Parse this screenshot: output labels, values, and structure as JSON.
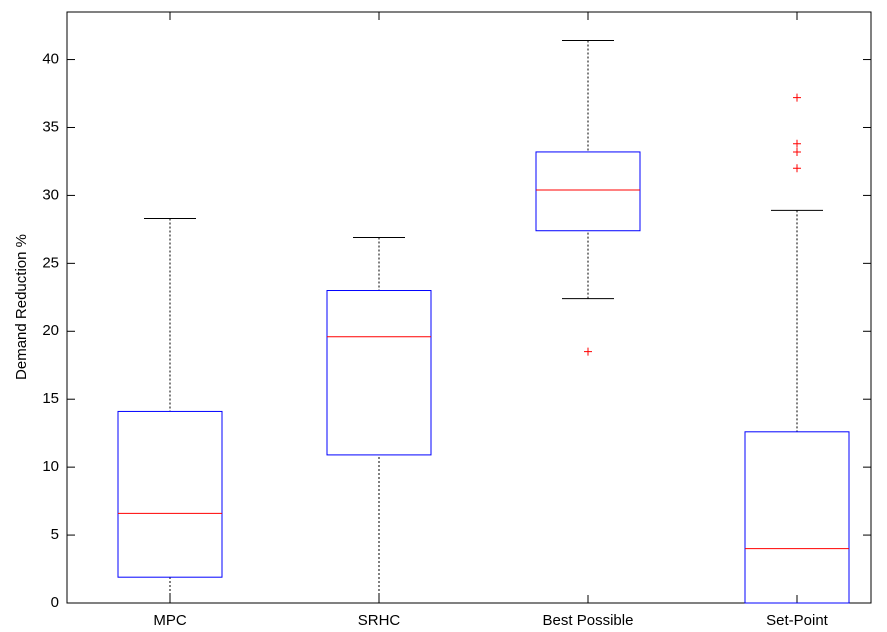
{
  "chart_data": {
    "type": "box",
    "y_label": "Demand Reduction %",
    "categories": [
      "MPC",
      "SRHC",
      "Best Possible",
      "Set-Point"
    ],
    "boxes": [
      {
        "min": 0,
        "q1": 1.9,
        "median": 6.6,
        "q3": 14.1,
        "max": 28.3,
        "outliers": []
      },
      {
        "min": 0,
        "q1": 10.9,
        "median": 19.6,
        "q3": 23.0,
        "max": 26.9,
        "outliers": []
      },
      {
        "min": 22.4,
        "q1": 27.4,
        "median": 30.4,
        "q3": 33.2,
        "max": 41.4,
        "outliers": [
          18.5
        ]
      },
      {
        "min": 0,
        "q1": 0,
        "median": 4.0,
        "q3": 12.6,
        "max": 28.9,
        "outliers": [
          37.2,
          33.8,
          33.2,
          32.0
        ]
      }
    ],
    "box_color": "#0000ff",
    "median_color": "#ff0000",
    "whisker_color": "#000000",
    "outlier_color": "#ff0000",
    "ylim": [
      0,
      43.5
    ],
    "yticks": [
      0,
      5,
      10,
      15,
      20,
      25,
      30,
      35,
      40
    ]
  }
}
